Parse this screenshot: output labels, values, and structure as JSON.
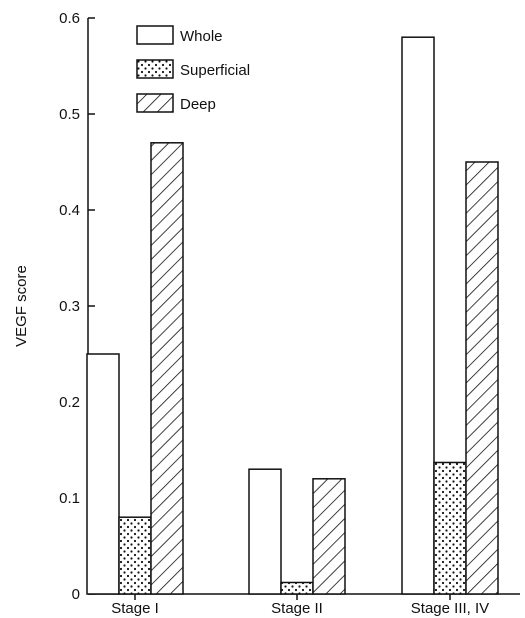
{
  "chart_data": {
    "type": "bar",
    "title": "",
    "xlabel": "",
    "ylabel": "VEGF score",
    "ylim": [
      0,
      0.6
    ],
    "yticks": [
      "0",
      "0.1",
      "0.2",
      "0.3",
      "0.4",
      "0.5",
      "0.6"
    ],
    "grid": false,
    "legend_position": "top-left",
    "categories": [
      "Stage I",
      "Stage II",
      "Stage III, IV"
    ],
    "series": [
      {
        "name": "Whole",
        "pattern": "white",
        "values": [
          0.25,
          0.13,
          0.58
        ]
      },
      {
        "name": "Superficial",
        "pattern": "dots",
        "values": [
          0.08,
          0.012,
          0.137
        ]
      },
      {
        "name": "Deep",
        "pattern": "diagonal-hatch",
        "values": [
          0.47,
          0.12,
          0.45
        ]
      }
    ],
    "colors": {
      "stroke": "#111111",
      "fill": "#ffffff"
    }
  }
}
